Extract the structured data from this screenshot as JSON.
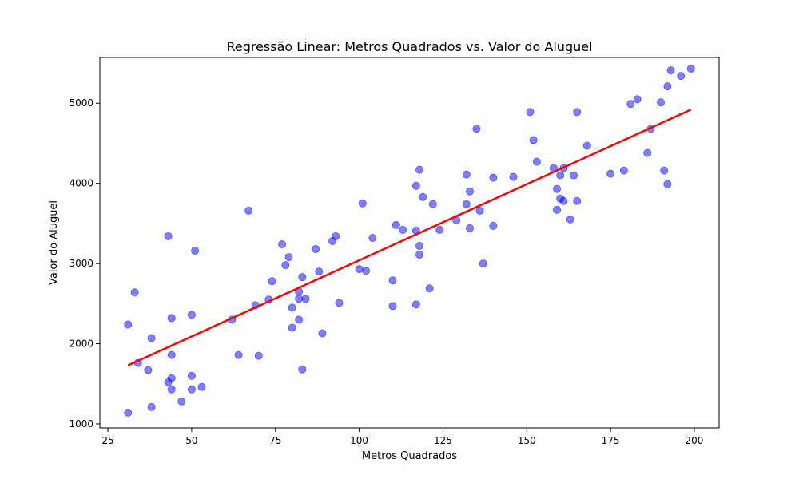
{
  "chart_data": {
    "type": "scatter",
    "title": "Regressão Linear: Metros Quadrados vs. Valor do Aluguel",
    "xlabel": "Metros Quadrados",
    "ylabel": "Valor do Aluguel",
    "xlim": [
      22.6,
      207.4
    ],
    "ylim": [
      950,
      5570
    ],
    "xticks": [
      25,
      50,
      75,
      100,
      125,
      150,
      175,
      200
    ],
    "yticks": [
      1000,
      2000,
      3000,
      4000,
      5000
    ],
    "xtick_labels": [
      "25",
      "50",
      "75",
      "100",
      "125",
      "150",
      "175",
      "200"
    ],
    "ytick_labels": [
      "1000",
      "2000",
      "3000",
      "4000",
      "5000"
    ],
    "grid": false,
    "legend": "none",
    "point_color": "#0000ff",
    "line_color": "#ff0000",
    "points": [
      [
        31,
        2240
      ],
      [
        33,
        2640
      ],
      [
        34,
        1760
      ],
      [
        31,
        1140
      ],
      [
        37,
        1670
      ],
      [
        38,
        2070
      ],
      [
        38,
        1210
      ],
      [
        43,
        3340
      ],
      [
        43,
        1520
      ],
      [
        44,
        2320
      ],
      [
        44,
        1860
      ],
      [
        44,
        1570
      ],
      [
        44,
        1430
      ],
      [
        47,
        1280
      ],
      [
        50,
        2360
      ],
      [
        50,
        1600
      ],
      [
        50,
        1430
      ],
      [
        51,
        3160
      ],
      [
        53,
        1460
      ],
      [
        62,
        2300
      ],
      [
        64,
        1860
      ],
      [
        67,
        3660
      ],
      [
        69,
        2480
      ],
      [
        70,
        1850
      ],
      [
        73,
        2550
      ],
      [
        74,
        2780
      ],
      [
        77,
        3240
      ],
      [
        78,
        2980
      ],
      [
        79,
        3080
      ],
      [
        80,
        2450
      ],
      [
        80,
        2200
      ],
      [
        82,
        2650
      ],
      [
        82,
        2560
      ],
      [
        82,
        2300
      ],
      [
        83,
        2830
      ],
      [
        83,
        1680
      ],
      [
        84,
        2560
      ],
      [
        87,
        3180
      ],
      [
        88,
        2900
      ],
      [
        89,
        2130
      ],
      [
        92,
        3280
      ],
      [
        93,
        3340
      ],
      [
        94,
        2510
      ],
      [
        100,
        2930
      ],
      [
        101,
        3750
      ],
      [
        102,
        2910
      ],
      [
        104,
        3320
      ],
      [
        110,
        2790
      ],
      [
        110,
        2470
      ],
      [
        111,
        3480
      ],
      [
        113,
        3420
      ],
      [
        117,
        3970
      ],
      [
        117,
        3410
      ],
      [
        117,
        2490
      ],
      [
        118,
        4170
      ],
      [
        118,
        3220
      ],
      [
        118,
        3110
      ],
      [
        119,
        3830
      ],
      [
        121,
        2690
      ],
      [
        122,
        3740
      ],
      [
        124,
        3420
      ],
      [
        129,
        3540
      ],
      [
        132,
        4110
      ],
      [
        132,
        3740
      ],
      [
        133,
        3900
      ],
      [
        133,
        3440
      ],
      [
        135,
        4680
      ],
      [
        136,
        3660
      ],
      [
        137,
        3000
      ],
      [
        140,
        4070
      ],
      [
        140,
        3470
      ],
      [
        146,
        4080
      ],
      [
        151,
        4890
      ],
      [
        152,
        4540
      ],
      [
        153,
        4270
      ],
      [
        158,
        4190
      ],
      [
        159,
        3930
      ],
      [
        159,
        3670
      ],
      [
        160,
        4100
      ],
      [
        160,
        3810
      ],
      [
        161,
        4190
      ],
      [
        161,
        3780
      ],
      [
        163,
        3550
      ],
      [
        164,
        4100
      ],
      [
        165,
        4890
      ],
      [
        165,
        3780
      ],
      [
        168,
        4470
      ],
      [
        175,
        4120
      ],
      [
        179,
        4160
      ],
      [
        181,
        4990
      ],
      [
        183,
        5050
      ],
      [
        186,
        4380
      ],
      [
        187,
        4680
      ],
      [
        190,
        5010
      ],
      [
        191,
        4160
      ],
      [
        192,
        5210
      ],
      [
        192,
        3990
      ],
      [
        193,
        5410
      ],
      [
        196,
        5340
      ],
      [
        199,
        5430
      ]
    ],
    "regression_line": {
      "x": [
        31,
        199
      ],
      "y": [
        1730,
        4920
      ]
    }
  }
}
